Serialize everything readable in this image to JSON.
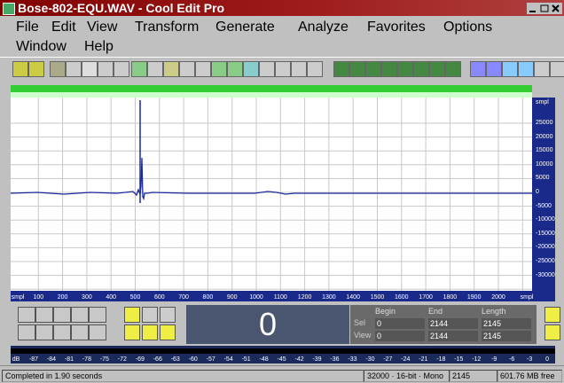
{
  "title_bar": {
    "title": "Bose-802-EQU.WAV - Cool Edit Pro"
  },
  "menu": {
    "row1": [
      "File",
      "Edit",
      "View",
      "Transform",
      "Generate",
      "Analyze",
      "Favorites",
      "Options"
    ],
    "row2": [
      "Window",
      "Help"
    ]
  },
  "waveform": {
    "y_labels": [
      "smpl",
      "25000",
      "20000",
      "15000",
      "10000",
      "5000",
      "0",
      "-5000",
      "-10000",
      "-15000",
      "-20000",
      "-25000",
      "-30000"
    ],
    "x_labels": [
      "smpl",
      "100",
      "200",
      "300",
      "400",
      "500",
      "600",
      "700",
      "800",
      "900",
      "1000",
      "1100",
      "1200",
      "1300",
      "1400",
      "1500",
      "1600",
      "1700",
      "1800",
      "1900",
      "2000",
      "smpl"
    ]
  },
  "time_display": "0",
  "selection": {
    "headers": [
      "Begin",
      "End",
      "Length"
    ],
    "rows": [
      {
        "label": "Sel",
        "values": [
          "0",
          "2144",
          "2145"
        ]
      },
      {
        "label": "View",
        "values": [
          "0",
          "2144",
          "2145"
        ]
      }
    ]
  },
  "meter": {
    "labels": [
      "dB",
      "-87",
      "-84",
      "-81",
      "-78",
      "-75",
      "-72",
      "-69",
      "-66",
      "-63",
      "-60",
      "-57",
      "-54",
      "-51",
      "-48",
      "-45",
      "-42",
      "-39",
      "-36",
      "-33",
      "-30",
      "-27",
      "-24",
      "-21",
      "-18",
      "-15",
      "-12",
      "-9",
      "-6",
      "-3",
      "0"
    ]
  },
  "status_bar": {
    "message": "Completed in 1.90 seconds",
    "format": "32000 · 16-bit · Mono",
    "size": "2145",
    "free": "601.76 MB free"
  }
}
